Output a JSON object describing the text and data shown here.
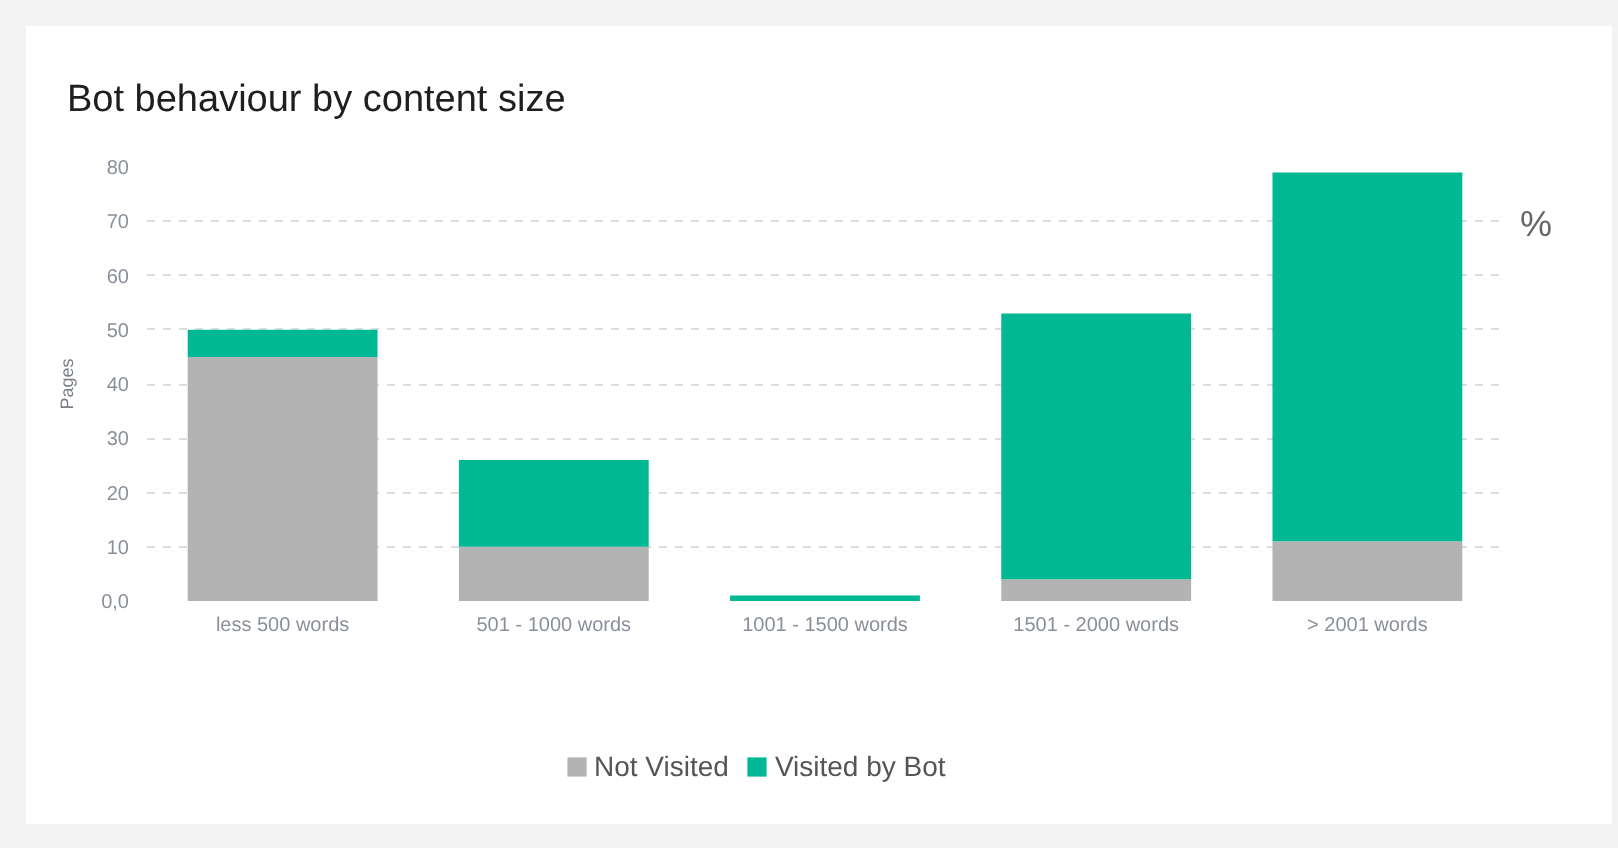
{
  "chart_data": {
    "type": "bar",
    "title": "Bot behaviour by content size",
    "ylabel": "Pages",
    "categories": [
      "less 500 words",
      "501 - 1000 words",
      "1001 - 1500 words",
      "1501 - 2000 words",
      "> 2001 words"
    ],
    "series": [
      {
        "name": "Not Visited",
        "color": "#b3b3b3",
        "values": [
          45,
          10,
          0,
          4,
          11
        ]
      },
      {
        "name": "Visited by Bot",
        "color": "#00b894",
        "values": [
          5,
          16,
          1,
          49,
          68
        ]
      }
    ],
    "stacked": true,
    "ylim": [
      0,
      80
    ],
    "yticks": [
      {
        "value": 0,
        "label": "0,0"
      },
      10,
      20,
      30,
      40,
      50,
      60,
      70,
      80
    ],
    "grid": "y",
    "legend": "bottom",
    "annotations": [
      "%"
    ]
  }
}
